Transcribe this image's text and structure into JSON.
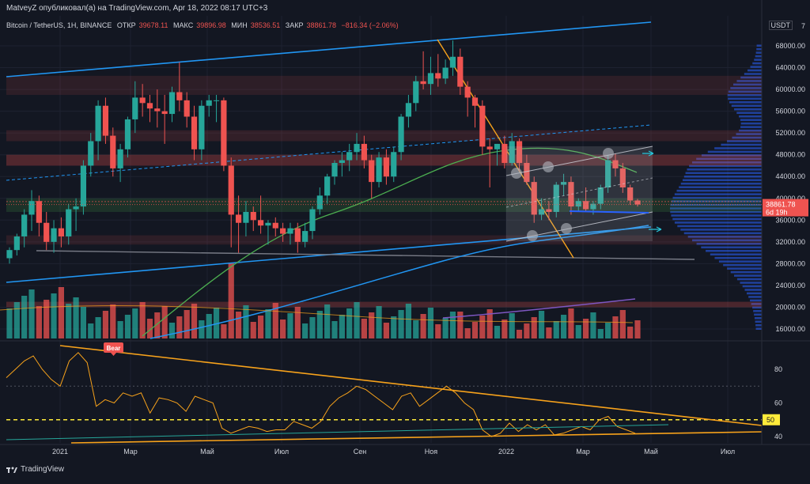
{
  "header": {
    "author_line": "MatveyZ опубликовал(а) на TradingView.com, Apr 18, 2022 08:17 UTC+3"
  },
  "symbol_bar": {
    "name": "Bitcoin / TetherUS, 1H, BINANCE",
    "open_label": "ОТКР",
    "open_value": "39678.11",
    "high_label": "МАКС",
    "high_value": "39896.98",
    "low_label": "МИН",
    "low_value": "38536.51",
    "close_label": "ЗАКР",
    "close_value": "38861.78",
    "change": "−816.34 (−2.06%)"
  },
  "currency_badge": "USDT",
  "top_scale_value": "7",
  "price_axis": [
    "68000.00",
    "64000.00",
    "60000.00",
    "56000.00",
    "52000.00",
    "48000.00",
    "44000.00",
    "40000.00",
    "36000.00",
    "32000.00",
    "28000.00",
    "24000.00",
    "20000.00",
    "16000.00"
  ],
  "last_price_label": "38861.78",
  "last_price_time": "6d 19h",
  "oscillator_axis": [
    "80",
    "60",
    "40"
  ],
  "oscillator_level_label": "50",
  "time_axis": [
    "2021",
    "Мар",
    "Май",
    "Июл",
    "Сен",
    "Ноя",
    "2022",
    "Мар",
    "Май",
    "Июл"
  ],
  "signal_label": "Bear",
  "brand": "TradingView",
  "colors": {
    "background": "#131722",
    "bull": "#26a69a",
    "bear": "#ef5350",
    "trendline": "#2962ff",
    "orange": "#f7a21b",
    "ma_green": "#4caf50"
  },
  "chart_data": {
    "type": "candlestick",
    "title": "Bitcoin / TetherUS, 1H, BINANCE",
    "y_range": [
      14000,
      72000
    ],
    "x_ticks": [
      "2021",
      "Мар",
      "Май",
      "Июл",
      "Сен",
      "Ноя",
      "2022",
      "Мар",
      "Май",
      "Июл"
    ],
    "candles": [
      {
        "o": 29000,
        "h": 31000,
        "l": 28000,
        "c": 30500
      },
      {
        "o": 30500,
        "h": 33500,
        "l": 29500,
        "c": 33000
      },
      {
        "o": 33000,
        "h": 38000,
        "l": 31000,
        "c": 37000
      },
      {
        "o": 37000,
        "h": 41500,
        "l": 34000,
        "c": 39500
      },
      {
        "o": 39500,
        "h": 40500,
        "l": 33000,
        "c": 35500
      },
      {
        "o": 35500,
        "h": 37500,
        "l": 30500,
        "c": 32000
      },
      {
        "o": 32000,
        "h": 36000,
        "l": 30000,
        "c": 34500
      },
      {
        "o": 34500,
        "h": 36500,
        "l": 31000,
        "c": 33000
      },
      {
        "o": 33000,
        "h": 39000,
        "l": 31500,
        "c": 38000
      },
      {
        "o": 38000,
        "h": 40000,
        "l": 34000,
        "c": 38500
      },
      {
        "o": 38500,
        "h": 47000,
        "l": 37000,
        "c": 46000
      },
      {
        "o": 46000,
        "h": 52000,
        "l": 44000,
        "c": 50500
      },
      {
        "o": 50500,
        "h": 58000,
        "l": 47000,
        "c": 57000
      },
      {
        "o": 57000,
        "h": 58500,
        "l": 50000,
        "c": 51500
      },
      {
        "o": 51500,
        "h": 53000,
        "l": 44000,
        "c": 45500
      },
      {
        "o": 45500,
        "h": 50000,
        "l": 43000,
        "c": 49000
      },
      {
        "o": 49000,
        "h": 55000,
        "l": 47500,
        "c": 54500
      },
      {
        "o": 54500,
        "h": 61500,
        "l": 52000,
        "c": 58500
      },
      {
        "o": 58500,
        "h": 61000,
        "l": 55000,
        "c": 57500
      },
      {
        "o": 57500,
        "h": 59000,
        "l": 54000,
        "c": 56500
      },
      {
        "o": 56500,
        "h": 60000,
        "l": 53000,
        "c": 56000
      },
      {
        "o": 56000,
        "h": 59000,
        "l": 50000,
        "c": 55500
      },
      {
        "o": 55500,
        "h": 60500,
        "l": 54000,
        "c": 59500
      },
      {
        "o": 59500,
        "h": 65000,
        "l": 56000,
        "c": 58000
      },
      {
        "o": 58000,
        "h": 59500,
        "l": 53000,
        "c": 55000
      },
      {
        "o": 55000,
        "h": 57000,
        "l": 47000,
        "c": 49000
      },
      {
        "o": 49000,
        "h": 58000,
        "l": 47000,
        "c": 57000
      },
      {
        "o": 57000,
        "h": 59000,
        "l": 55000,
        "c": 58000
      },
      {
        "o": 58000,
        "h": 59000,
        "l": 54000,
        "c": 58000
      },
      {
        "o": 58000,
        "h": 58500,
        "l": 45000,
        "c": 46000
      },
      {
        "o": 46000,
        "h": 47500,
        "l": 31000,
        "c": 37000
      },
      {
        "o": 37000,
        "h": 40500,
        "l": 30000,
        "c": 35500
      },
      {
        "o": 35500,
        "h": 39500,
        "l": 33000,
        "c": 37500
      },
      {
        "o": 37500,
        "h": 38500,
        "l": 34000,
        "c": 36000
      },
      {
        "o": 36000,
        "h": 40500,
        "l": 33500,
        "c": 35000
      },
      {
        "o": 35000,
        "h": 36000,
        "l": 31500,
        "c": 35500
      },
      {
        "o": 35500,
        "h": 36500,
        "l": 33000,
        "c": 34500
      },
      {
        "o": 34500,
        "h": 35500,
        "l": 32000,
        "c": 33500
      },
      {
        "o": 33500,
        "h": 35500,
        "l": 31500,
        "c": 34500
      },
      {
        "o": 34500,
        "h": 35500,
        "l": 30000,
        "c": 32000
      },
      {
        "o": 32000,
        "h": 35500,
        "l": 31000,
        "c": 34000
      },
      {
        "o": 34000,
        "h": 38500,
        "l": 32500,
        "c": 38000
      },
      {
        "o": 38000,
        "h": 42000,
        "l": 37000,
        "c": 40500
      },
      {
        "o": 40500,
        "h": 44500,
        "l": 39000,
        "c": 44000
      },
      {
        "o": 44000,
        "h": 47000,
        "l": 42500,
        "c": 46500
      },
      {
        "o": 46500,
        "h": 48500,
        "l": 44000,
        "c": 47000
      },
      {
        "o": 47000,
        "h": 50000,
        "l": 45000,
        "c": 48500
      },
      {
        "o": 48500,
        "h": 52000,
        "l": 47000,
        "c": 50000
      },
      {
        "o": 50000,
        "h": 51500,
        "l": 45500,
        "c": 47000
      },
      {
        "o": 47000,
        "h": 48000,
        "l": 40000,
        "c": 43000
      },
      {
        "o": 43000,
        "h": 48500,
        "l": 42000,
        "c": 47500
      },
      {
        "o": 47500,
        "h": 49000,
        "l": 42500,
        "c": 44000
      },
      {
        "o": 44000,
        "h": 49500,
        "l": 43000,
        "c": 48500
      },
      {
        "o": 48500,
        "h": 55500,
        "l": 47000,
        "c": 55000
      },
      {
        "o": 55000,
        "h": 59000,
        "l": 53000,
        "c": 57500
      },
      {
        "o": 57500,
        "h": 62500,
        "l": 56000,
        "c": 61500
      },
      {
        "o": 61500,
        "h": 67000,
        "l": 60000,
        "c": 61000
      },
      {
        "o": 61000,
        "h": 66000,
        "l": 59000,
        "c": 63000
      },
      {
        "o": 63000,
        "h": 66500,
        "l": 60500,
        "c": 62000
      },
      {
        "o": 62000,
        "h": 65500,
        "l": 61000,
        "c": 64000
      },
      {
        "o": 64000,
        "h": 69000,
        "l": 62500,
        "c": 66000
      },
      {
        "o": 66000,
        "h": 67500,
        "l": 59000,
        "c": 60500
      },
      {
        "o": 60500,
        "h": 61500,
        "l": 55000,
        "c": 58500
      },
      {
        "o": 58500,
        "h": 59000,
        "l": 53000,
        "c": 57000
      },
      {
        "o": 57000,
        "h": 58000,
        "l": 48000,
        "c": 49500
      },
      {
        "o": 49500,
        "h": 51000,
        "l": 42000,
        "c": 49000
      },
      {
        "o": 49000,
        "h": 50000,
        "l": 46000,
        "c": 50000
      },
      {
        "o": 50000,
        "h": 51500,
        "l": 45500,
        "c": 46500
      },
      {
        "o": 46500,
        "h": 52000,
        "l": 46000,
        "c": 50500
      },
      {
        "o": 50500,
        "h": 51000,
        "l": 45000,
        "c": 46500
      },
      {
        "o": 46500,
        "h": 48000,
        "l": 42500,
        "c": 43000
      },
      {
        "o": 43000,
        "h": 44000,
        "l": 35500,
        "c": 37000
      },
      {
        "o": 37000,
        "h": 40000,
        "l": 36000,
        "c": 38000
      },
      {
        "o": 38000,
        "h": 39500,
        "l": 36000,
        "c": 37500
      },
      {
        "o": 37500,
        "h": 43000,
        "l": 36500,
        "c": 42500
      },
      {
        "o": 42500,
        "h": 44500,
        "l": 40500,
        "c": 43000
      },
      {
        "o": 43000,
        "h": 44000,
        "l": 37000,
        "c": 38500
      },
      {
        "o": 38500,
        "h": 40000,
        "l": 37500,
        "c": 39500
      },
      {
        "o": 39500,
        "h": 42000,
        "l": 37500,
        "c": 38000
      },
      {
        "o": 38000,
        "h": 39500,
        "l": 37000,
        "c": 39000
      },
      {
        "o": 39000,
        "h": 42500,
        "l": 38000,
        "c": 42000
      },
      {
        "o": 42000,
        "h": 48000,
        "l": 41000,
        "c": 47000
      },
      {
        "o": 47000,
        "h": 48200,
        "l": 44000,
        "c": 45500
      },
      {
        "o": 45500,
        "h": 46500,
        "l": 41000,
        "c": 42000
      },
      {
        "o": 42000,
        "h": 42500,
        "l": 38800,
        "c": 39600
      },
      {
        "o": 39600,
        "h": 39900,
        "l": 38500,
        "c": 38862
      }
    ],
    "rsi": [
      75,
      80,
      85,
      88,
      80,
      74,
      70,
      85,
      90,
      84,
      58,
      62,
      60,
      66,
      64,
      66,
      54,
      63,
      62,
      60,
      55,
      64,
      62,
      60,
      45,
      42,
      44,
      46,
      45,
      43,
      44,
      44,
      49,
      47,
      45,
      49,
      58,
      63,
      66,
      70,
      68,
      64,
      60,
      56,
      64,
      66,
      58,
      62,
      66,
      70,
      66,
      60,
      56,
      44,
      40,
      42,
      48,
      43,
      47,
      44,
      47,
      41,
      42,
      44,
      46,
      44,
      50,
      52,
      46,
      44,
      42
    ],
    "rsi_levels": [
      50
    ]
  }
}
